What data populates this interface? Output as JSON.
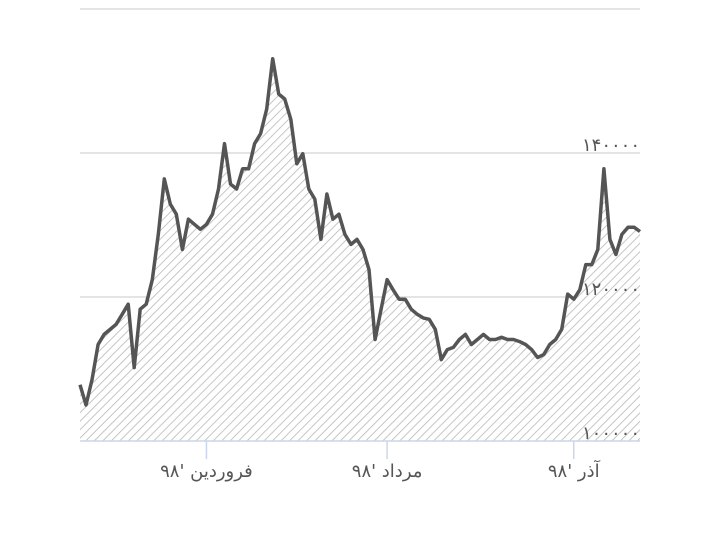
{
  "chart_data": {
    "type": "area",
    "values": [
      107800,
      105000,
      108500,
      113400,
      114800,
      115500,
      116200,
      117600,
      119000,
      110200,
      118300,
      119000,
      122400,
      128700,
      136400,
      132900,
      131500,
      126600,
      130800,
      130100,
      129400,
      130100,
      131500,
      135000,
      141300,
      135700,
      135000,
      137800,
      137800,
      141300,
      142700,
      146100,
      153100,
      148200,
      147500,
      144700,
      138500,
      139900,
      135000,
      133600,
      128000,
      134300,
      130800,
      131500,
      128700,
      127300,
      128000,
      126600,
      123800,
      114100,
      118300,
      122400,
      121000,
      119700,
      119700,
      118300,
      117600,
      117100,
      116900,
      115500,
      111300,
      112700,
      113000,
      114100,
      114800,
      113400,
      114100,
      114800,
      114100,
      114100,
      114400,
      114100,
      114100,
      113800,
      113400,
      112700,
      111600,
      112000,
      113400,
      114100,
      115500,
      120400,
      119700,
      121000,
      124500,
      124500,
      126600,
      137800,
      128000,
      125900,
      128700,
      129700,
      129700,
      129100
    ],
    "color": "#555555",
    "xlim": [
      0,
      93
    ],
    "xticks": [
      {
        "value": 21,
        "label": "فروردین '۹۸"
      },
      {
        "value": 51,
        "label": "مرداد '۹۸"
      },
      {
        "value": 82,
        "label": "آذر '۹۸"
      }
    ],
    "ylim": [
      100000,
      160000
    ],
    "yticks": [
      {
        "value": 100000,
        "label": "۱۰۰۰۰۰"
      },
      {
        "value": 120000,
        "label": "۱۲۰۰۰۰"
      },
      {
        "value": 140000,
        "label": "۱۴۰۰۰۰"
      }
    ],
    "grid": true
  }
}
